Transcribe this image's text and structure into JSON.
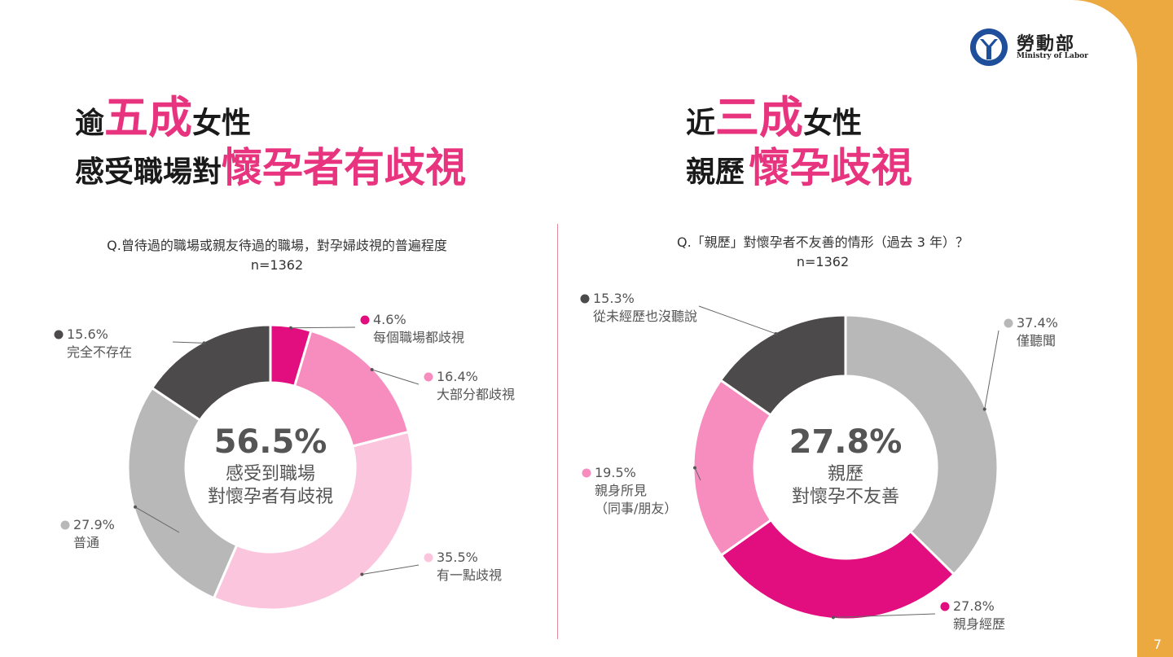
{
  "colors": {
    "accent": "#E8337E",
    "side_band": "#ECA93F",
    "dark": "#4C4A4B",
    "gray": "#B8B8B8",
    "hot_pink": "#E20D7E",
    "pink": "#F78DBE",
    "light_pink": "#FBC5DE"
  },
  "logo": {
    "name": "勞動部",
    "sub": "Ministry of Labor",
    "icon": "ministry-of-labor-emblem"
  },
  "page_number": "7",
  "left": {
    "title_line1": {
      "a": "逾",
      "b": "五成",
      "c": "女性"
    },
    "title_line2": {
      "a": "感受職場對",
      "b": "懷孕者有歧視"
    },
    "question": "Q.曾待過的職場或親友待過的職場，對孕婦歧視的普遍程度",
    "n": "n=1362",
    "center_value": "56.5%",
    "center_line1": "感受到職場",
    "center_line2": "對懷孕者有歧視"
  },
  "right": {
    "title_line1": {
      "a": "近",
      "b": "三成",
      "c": "女性"
    },
    "title_line2": {
      "a": "親歷",
      "b": "懷孕歧視"
    },
    "question": "Q.「親歷」對懷孕者不友善的情形（過去  3 年）？",
    "n": "n=1362",
    "center_value": "27.8%",
    "center_line1": "親歷",
    "center_line2": "對懷孕不友善"
  },
  "chart_data": [
    {
      "type": "pie",
      "donut": true,
      "slices": [
        {
          "label": "每個職場都歧視",
          "value": 4.6,
          "color": "#E20D7E"
        },
        {
          "label": "大部分都歧視",
          "value": 16.4,
          "color": "#F78DBE"
        },
        {
          "label": "有一點歧視",
          "value": 35.5,
          "color": "#FBC5DE"
        },
        {
          "label": "普通",
          "value": 27.9,
          "color": "#B8B8B8"
        },
        {
          "label": "完全不存在",
          "value": 15.6,
          "color": "#4C4A4B"
        }
      ]
    },
    {
      "type": "pie",
      "donut": true,
      "slices": [
        {
          "label": "僅聽聞",
          "value": 37.4,
          "color": "#B8B8B8"
        },
        {
          "label": "親身經歷",
          "value": 27.8,
          "color": "#E20D7E"
        },
        {
          "label": "親身所見（同事/朋友）",
          "label_lines": [
            "親身所見",
            "（同事/朋友）"
          ],
          "value": 19.5,
          "color": "#F78DBE"
        },
        {
          "label": "從未經歷也沒聽說",
          "value": 15.3,
          "color": "#4C4A4B"
        }
      ]
    }
  ]
}
